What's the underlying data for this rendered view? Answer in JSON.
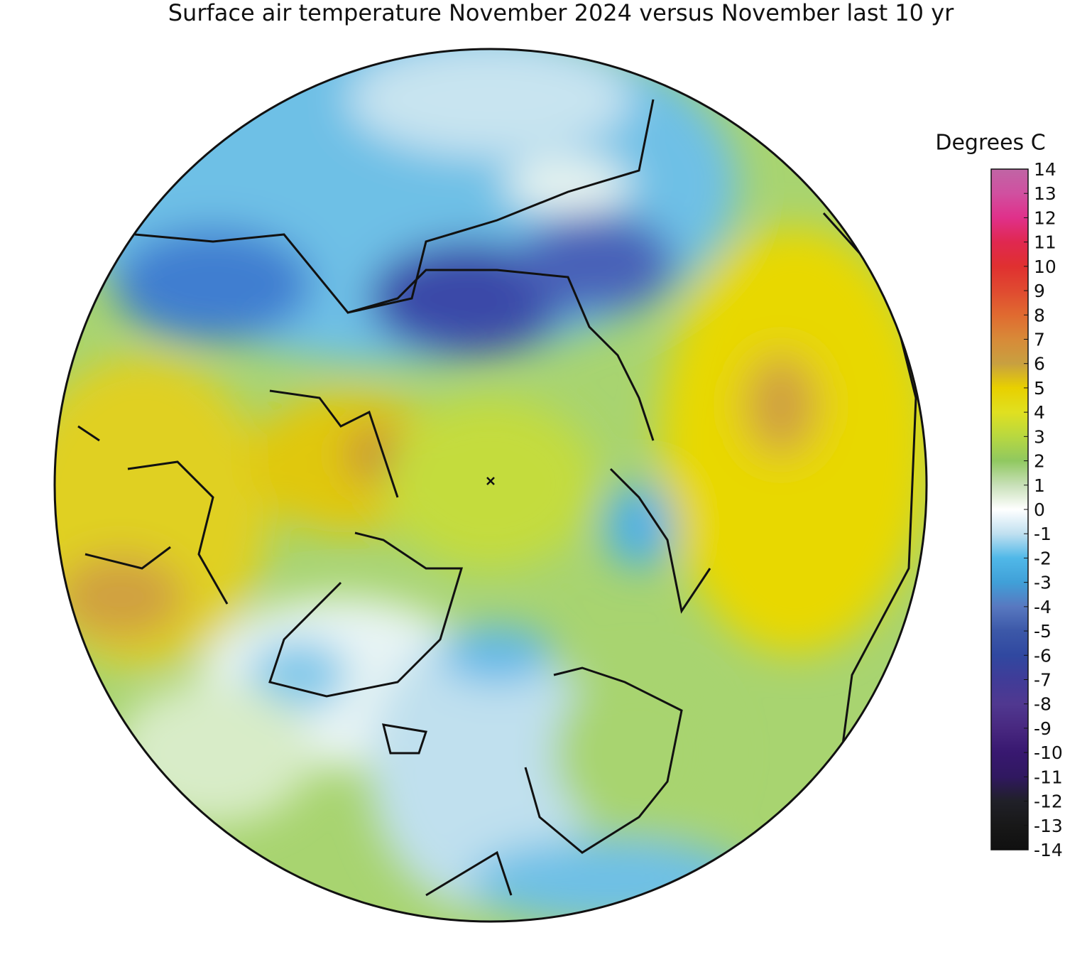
{
  "title": "Surface air temperature November 2024 versus November last 10 yr",
  "colorbar": {
    "label": "Degrees C",
    "ticks": [
      14,
      13,
      12,
      11,
      10,
      9,
      8,
      7,
      6,
      5,
      4,
      3,
      2,
      1,
      0,
      -1,
      -2,
      -3,
      -4,
      -5,
      -6,
      -7,
      -8,
      -9,
      -10,
      -11,
      -12,
      -13,
      -14
    ],
    "colors": [
      "#c065a5",
      "#d050a0",
      "#e0308a",
      "#e02850",
      "#e03030",
      "#e04a30",
      "#e06a30",
      "#d88a38",
      "#c8a040",
      "#e8d000",
      "#e0e020",
      "#b8d840",
      "#90c860",
      "#c8e0b8",
      "#ffffff",
      "#c0e0f0",
      "#50b8e8",
      "#40a0d8",
      "#5878c0",
      "#3c58a8",
      "#3048a0",
      "#403c98",
      "#503890",
      "#482880",
      "#381870",
      "#301860",
      "#202028",
      "#181818",
      "#101010"
    ]
  }
}
